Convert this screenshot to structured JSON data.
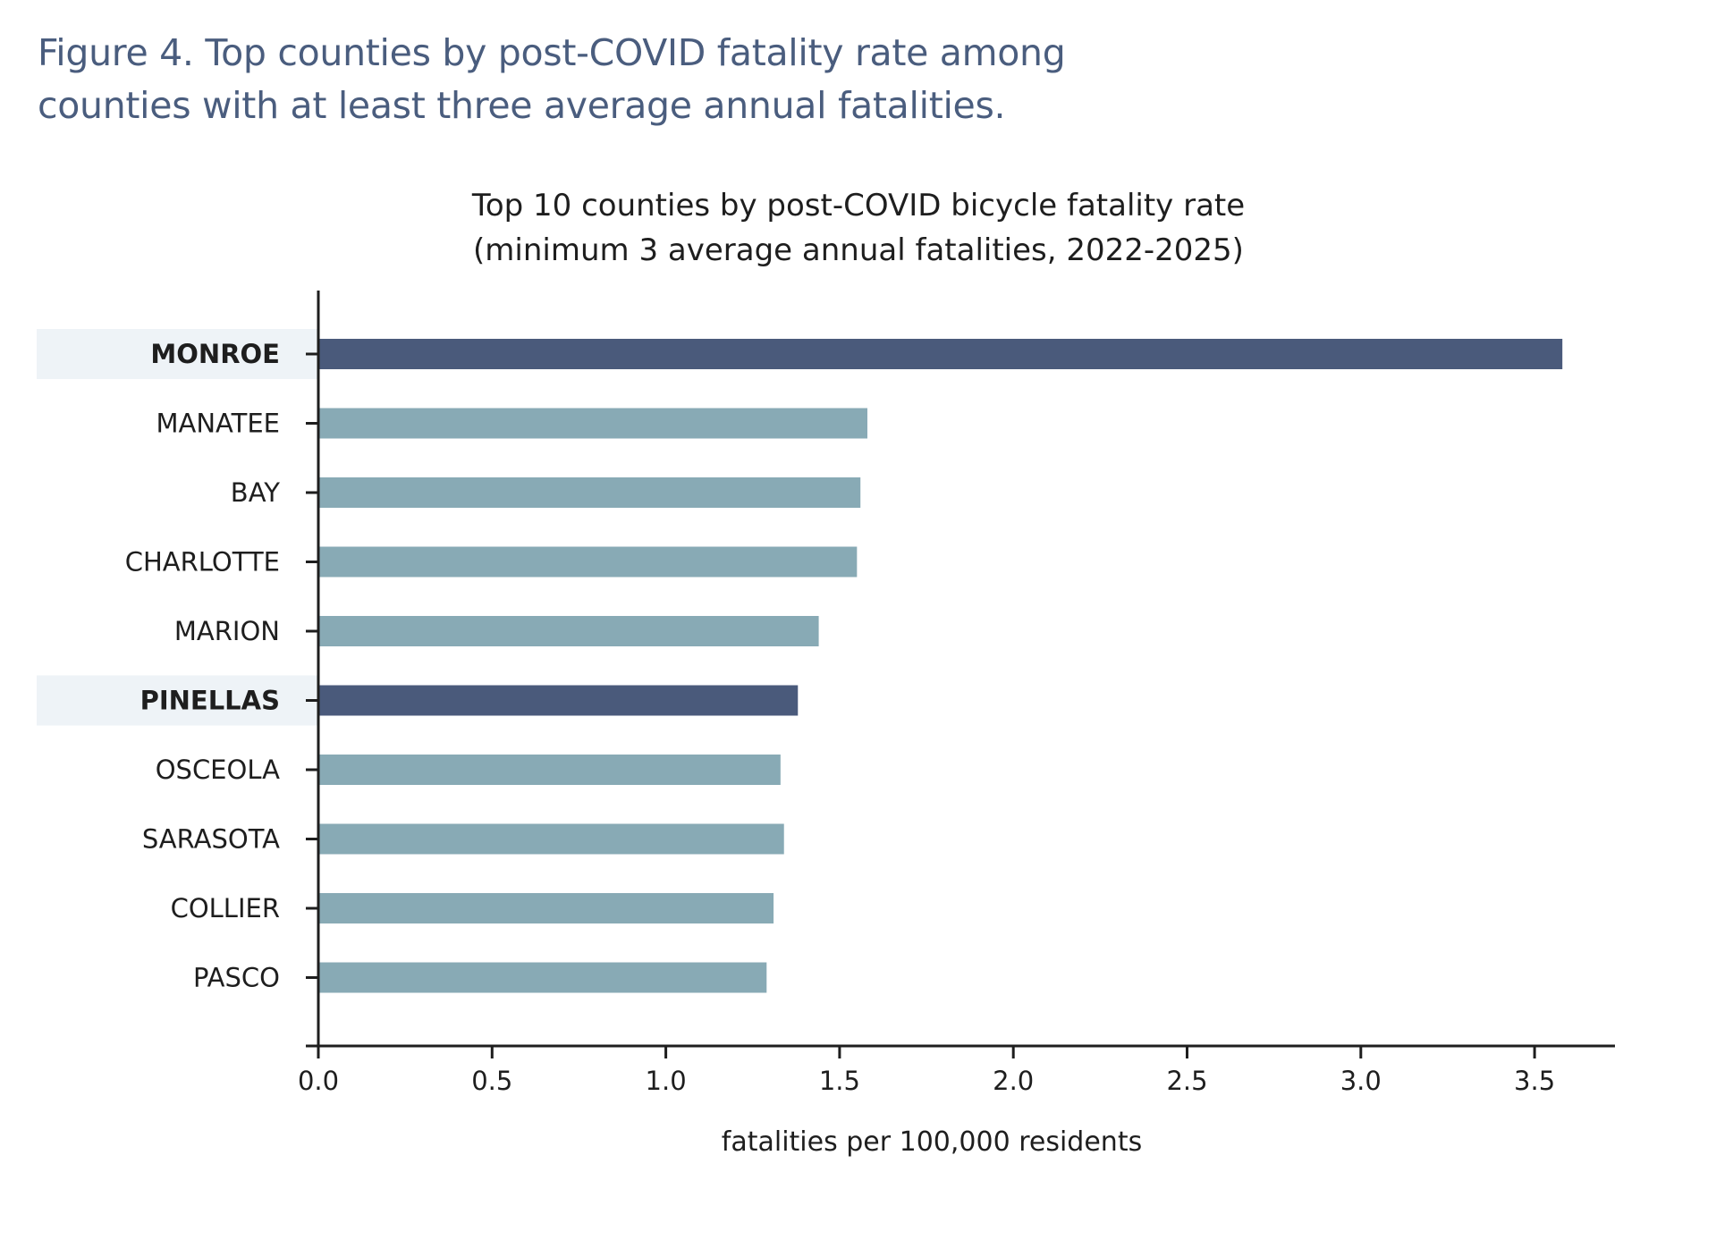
{
  "figure": {
    "caption_line1": "Figure 4. Top counties by post-COVID fatality rate among",
    "caption_line2": "counties with at least three average annual fatalities."
  },
  "chart_data": {
    "type": "bar",
    "orientation": "horizontal",
    "title_line1": "Top 10 counties by post-COVID bicycle fatality rate",
    "title_line2": "(minimum 3 average annual fatalities, 2022-2025)",
    "xlabel": "fatalities per 100,000 residents",
    "ylabel": "",
    "xlim": [
      0,
      3.75
    ],
    "xticks": [
      0.0,
      0.5,
      1.0,
      1.5,
      2.0,
      2.5,
      3.0,
      3.5
    ],
    "xtick_labels": [
      "0.0",
      "0.5",
      "1.0",
      "1.5",
      "2.0",
      "2.5",
      "3.0",
      "3.5"
    ],
    "grid": false,
    "categories": [
      "MONROE",
      "MANATEE",
      "BAY",
      "CHARLOTTE",
      "MARION",
      "PINELLAS",
      "OSCEOLA",
      "SARASOTA",
      "COLLIER",
      "PASCO"
    ],
    "values": [
      3.58,
      1.58,
      1.56,
      1.55,
      1.44,
      1.38,
      1.33,
      1.34,
      1.31,
      1.29
    ],
    "highlighted": [
      "MONROE",
      "PINELLAS"
    ],
    "colors": {
      "highlight_bar": "#4a5a7b",
      "default_bar": "#88aab5",
      "highlight_band": "#eef3f7",
      "axis": "#1e1e1e"
    }
  }
}
